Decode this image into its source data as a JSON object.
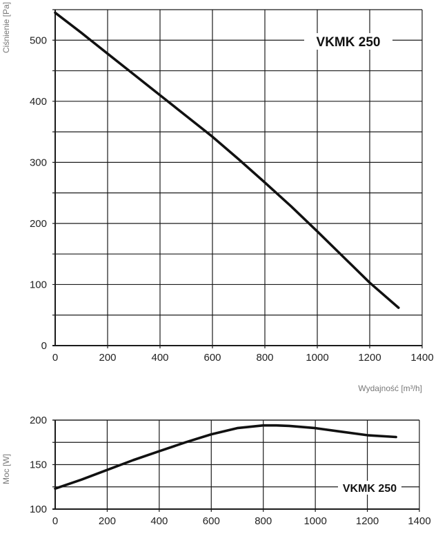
{
  "chart_data": [
    {
      "type": "line",
      "title": "VKMK 250",
      "xlabel": "Wydajność [m³/h]",
      "ylabel": "Ciśnienie [Pa]",
      "xlim": [
        0,
        1400
      ],
      "ylim": [
        0,
        550
      ],
      "x_ticks": [
        0,
        200,
        400,
        600,
        800,
        1000,
        1200,
        1400
      ],
      "y_ticks": [
        0,
        100,
        200,
        300,
        400,
        500
      ],
      "grid": true,
      "series": [
        {
          "x": [
            0,
            100,
            200,
            300,
            400,
            500,
            600,
            700,
            800,
            900,
            1000,
            1100,
            1200,
            1310
          ],
          "y": [
            545,
            512,
            478,
            444,
            410,
            376,
            342,
            305,
            267,
            228,
            187,
            145,
            103,
            62
          ]
        }
      ]
    },
    {
      "type": "line",
      "title": "VKMK 250",
      "xlabel": "",
      "ylabel": "Moc [W]",
      "xlim": [
        0,
        1400
      ],
      "ylim": [
        100,
        200
      ],
      "x_ticks": [
        0,
        200,
        400,
        600,
        800,
        1000,
        1200,
        1400
      ],
      "y_ticks": [
        100,
        150,
        200
      ],
      "grid": true,
      "series": [
        {
          "x": [
            0,
            100,
            200,
            300,
            400,
            500,
            600,
            700,
            800,
            850,
            900,
            1000,
            1100,
            1200,
            1310
          ],
          "y": [
            123,
            133,
            144,
            155,
            165,
            175,
            184,
            191,
            194,
            194,
            193.5,
            191,
            187,
            183,
            181
          ]
        }
      ]
    }
  ]
}
